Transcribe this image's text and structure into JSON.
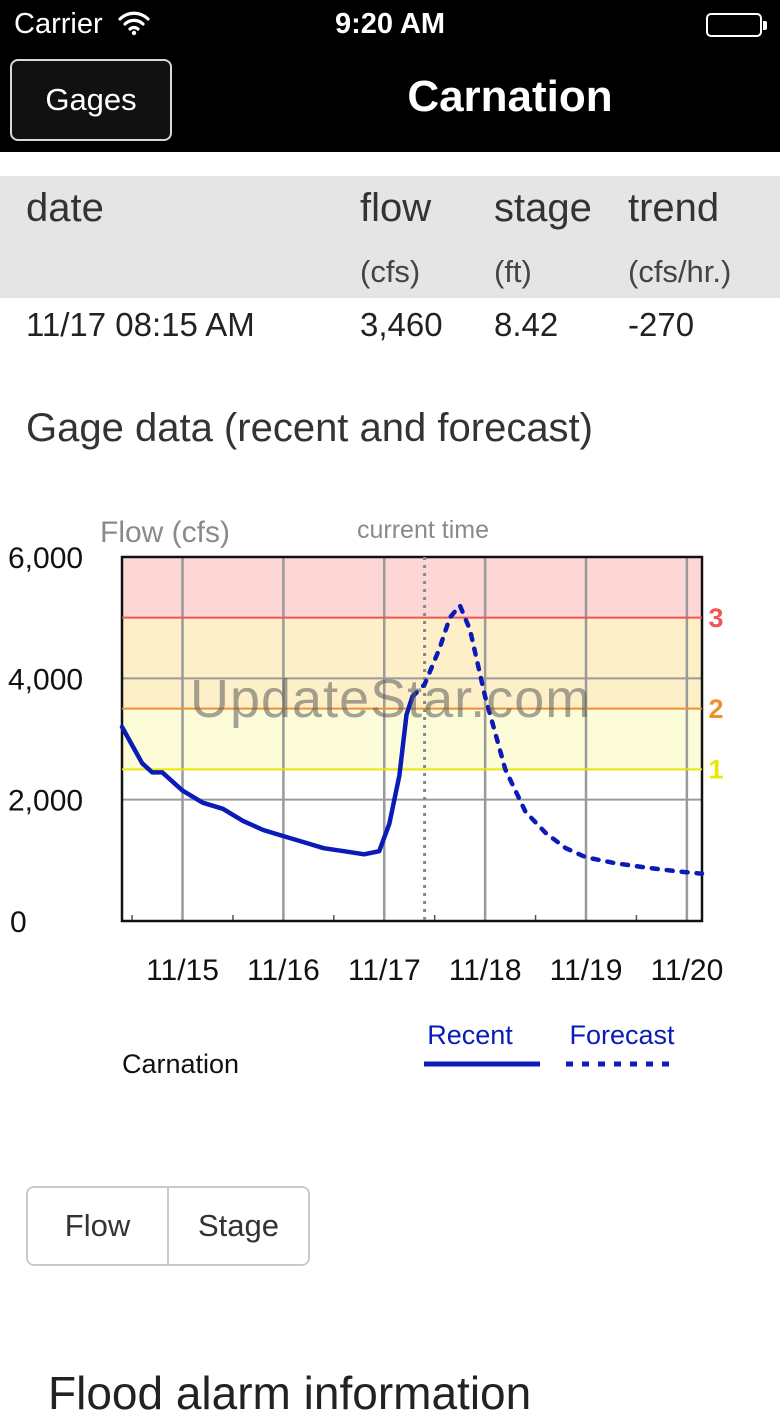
{
  "status_bar": {
    "carrier": "Carrier",
    "time": "9:20 AM"
  },
  "nav": {
    "back_label": "Gages",
    "title": "Carnation"
  },
  "table": {
    "headers": [
      "date",
      "flow",
      "stage",
      "trend"
    ],
    "units": [
      "(cfs)",
      "(ft)",
      "(cfs/hr.)"
    ],
    "row": {
      "date": "11/17 08:15 AM",
      "flow": "3,460",
      "stage": "8.42",
      "trend": "-270"
    }
  },
  "section_title": "Gage data (recent and forecast)",
  "chart_data": {
    "type": "line",
    "ylabel": "Flow (cfs)",
    "annotation": "current time",
    "yticks": [
      "6,000",
      "4,000",
      "2,000",
      "0"
    ],
    "xticks": [
      "11/15",
      "11/16",
      "11/17",
      "11/18",
      "11/19",
      "11/20"
    ],
    "ylim": [
      0,
      6000
    ],
    "xlim_days": [
      14.4,
      20.15
    ],
    "current_time_day": 17.4,
    "flood_levels": [
      {
        "label": "1",
        "value": 2500,
        "color": "#e8e800",
        "band": "#fdfcd9"
      },
      {
        "label": "2",
        "value": 3500,
        "color": "#f0902c",
        "band": "#fdf0c8"
      },
      {
        "label": "3",
        "value": 5000,
        "color": "#ee5555",
        "band": "#fdd6d6"
      }
    ],
    "gage_name": "Carnation",
    "legend": [
      "Recent",
      "Forecast"
    ],
    "series": [
      {
        "name": "Recent",
        "x": [
          14.4,
          14.5,
          14.6,
          14.7,
          14.8,
          15.0,
          15.2,
          15.4,
          15.6,
          15.8,
          16.0,
          16.2,
          16.4,
          16.6,
          16.8,
          16.95,
          17.05,
          17.15,
          17.22,
          17.28
        ],
        "y": [
          3200,
          2900,
          2600,
          2450,
          2450,
          2150,
          1950,
          1850,
          1650,
          1500,
          1400,
          1300,
          1200,
          1150,
          1100,
          1150,
          1600,
          2400,
          3400,
          3700
        ]
      },
      {
        "name": "Forecast",
        "x": [
          17.28,
          17.4,
          17.55,
          17.65,
          17.75,
          17.85,
          18.0,
          18.2,
          18.4,
          18.6,
          18.8,
          19.0,
          19.3,
          19.6,
          19.9,
          20.15
        ],
        "y": [
          3700,
          3900,
          4500,
          5000,
          5200,
          4800,
          3700,
          2500,
          1800,
          1450,
          1200,
          1050,
          950,
          880,
          820,
          780
        ]
      }
    ]
  },
  "watermark": "UpdateStar.com",
  "segmented": [
    "Flow",
    "Stage"
  ],
  "bottom_heading": "Flood alarm information"
}
